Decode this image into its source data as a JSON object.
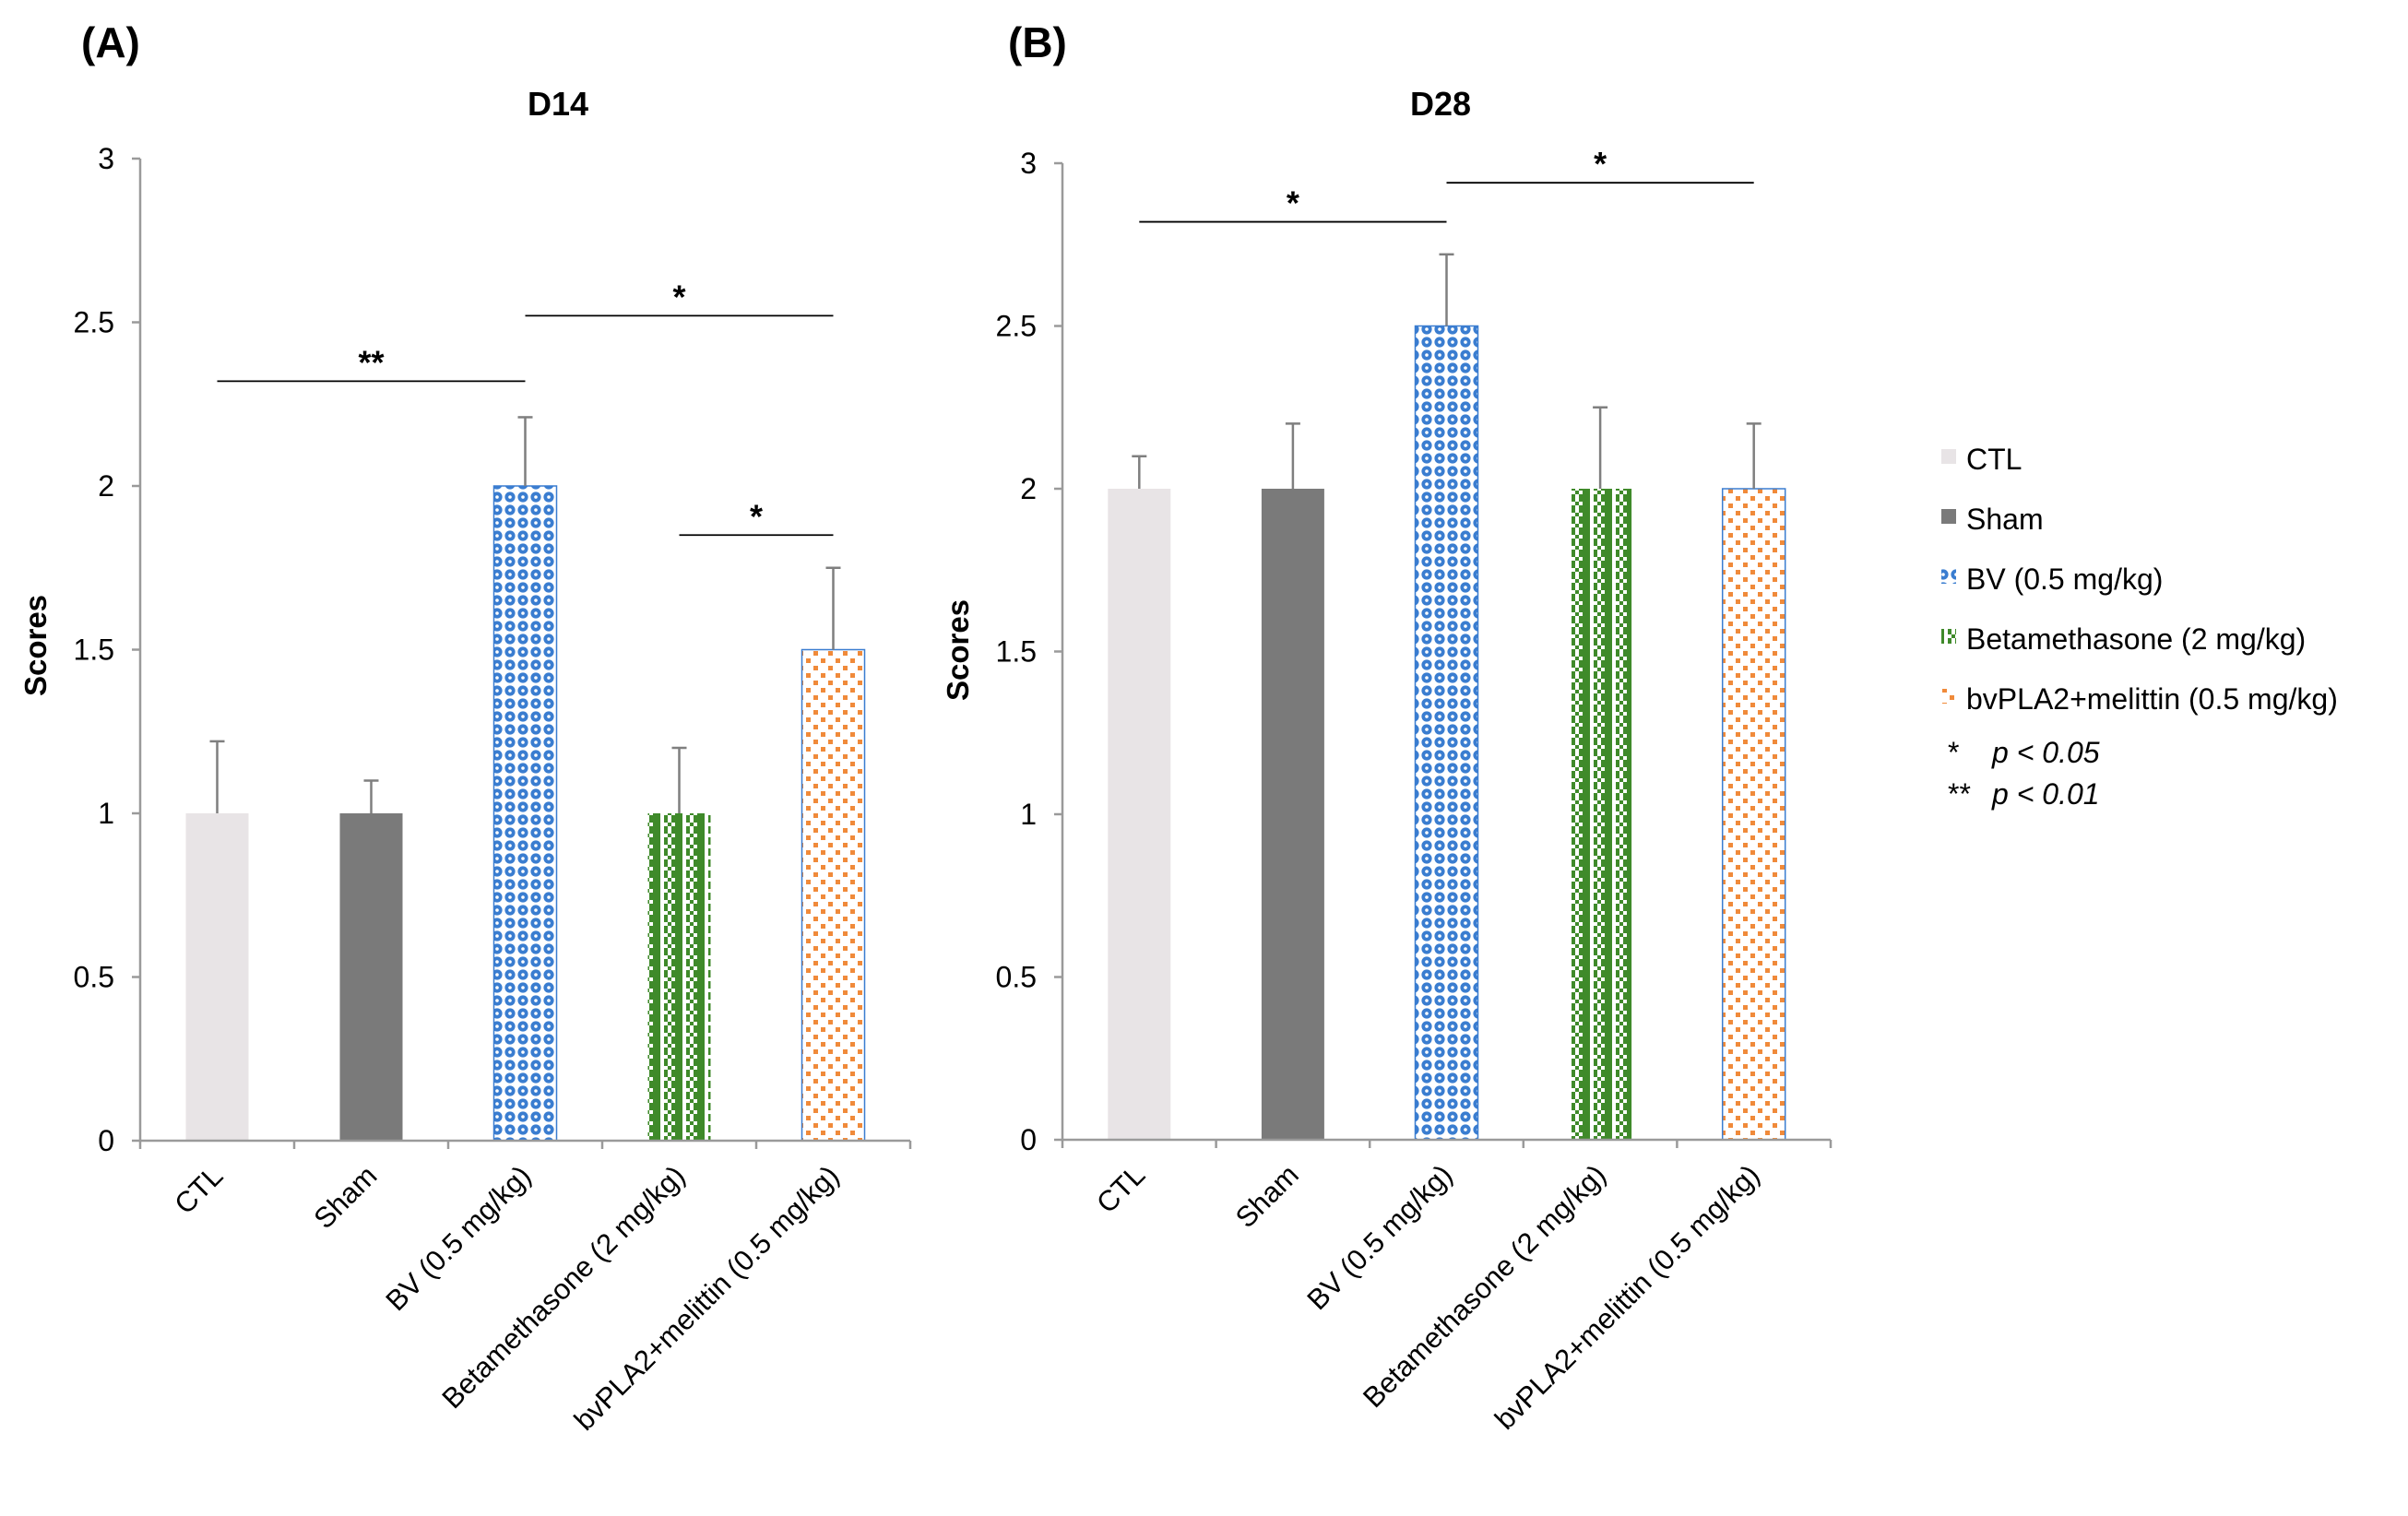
{
  "legend": {
    "items": [
      {
        "name": "CTL",
        "pattern": "solid-light"
      },
      {
        "name": "Sham",
        "pattern": "solid-dark"
      },
      {
        "name": "BV (0.5 mg/kg)",
        "pattern": "blue-circles"
      },
      {
        "name": "Betamethasone (2 mg/kg)",
        "pattern": "green-checker"
      },
      {
        "name": "bvPLA2+melittin (0.5 mg/kg)",
        "pattern": "orange-dots"
      }
    ],
    "notes": [
      {
        "stars": "*",
        "text": "p < 0.05"
      },
      {
        "stars": "**",
        "text": "p < 0.01"
      }
    ]
  },
  "colors": {
    "CTL": "#e8e4e6",
    "Sham": "#7a7a7a",
    "BV": "#3a7dd0",
    "Betamethasone": "#3f8a2a",
    "bvPLA2": "#f08a3a",
    "axis": "#9a9a9a",
    "errorbar": "#7f7f7f"
  },
  "chart_data": [
    {
      "panel": "(A)",
      "type": "bar",
      "title": "D14",
      "ylabel": "Scores",
      "xlabel": "",
      "ylim": [
        0,
        3
      ],
      "yticks": [
        "0",
        "0.5",
        "1",
        "1.5",
        "2",
        "2.5",
        "3"
      ],
      "categories": [
        "CTL",
        "Sham",
        "BV (0.5 mg/kg)",
        "Betamethasone (2 mg/kg)",
        "bvPLA2+melittin (0.5 mg/kg)"
      ],
      "values": [
        1,
        1,
        2,
        1,
        1.5
      ],
      "errors": [
        0.22,
        0.1,
        0.21,
        0.2,
        0.25
      ],
      "significance": [
        {
          "from": 0,
          "to": 2,
          "y": 2.32,
          "label": "**"
        },
        {
          "from": 2,
          "to": 4,
          "y": 2.52,
          "label": "*"
        },
        {
          "from": 3,
          "to": 4,
          "y": 1.85,
          "label": "*"
        }
      ]
    },
    {
      "panel": "(B)",
      "type": "bar",
      "title": "D28",
      "ylabel": "Scores",
      "xlabel": "",
      "ylim": [
        0,
        3
      ],
      "yticks": [
        "0",
        "0.5",
        "1",
        "1.5",
        "2",
        "2.5",
        "3"
      ],
      "categories": [
        "CTL",
        "Sham",
        "BV (0.5 mg/kg)",
        "Betamethasone (2 mg/kg)",
        "bvPLA2+melittin (0.5 mg/kg)"
      ],
      "values": [
        2,
        2,
        2.5,
        2,
        2
      ],
      "errors": [
        0.1,
        0.2,
        0.22,
        0.25,
        0.2
      ],
      "significance": [
        {
          "from": 0,
          "to": 2,
          "y": 2.82,
          "label": "*"
        },
        {
          "from": 2,
          "to": 4,
          "y": 2.94,
          "label": "*"
        }
      ]
    }
  ]
}
